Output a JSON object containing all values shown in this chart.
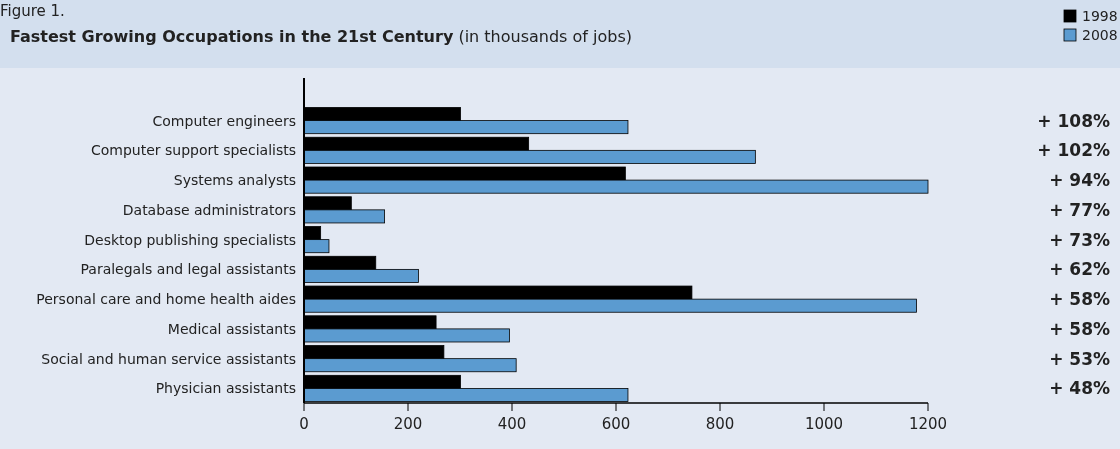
{
  "chart_data": {
    "type": "bar",
    "orientation": "horizontal",
    "title": "Fastest Growing Occupations in the 21st Century",
    "subtitle": "(in thousands of jobs)",
    "categories": [
      "Computer engineers",
      "Computer support specialists",
      "Systems analysts",
      "Database administrators",
      "Desktop publishing specialists",
      "Paralegals and legal assistants",
      "Personal care and home health aides",
      "Medical assistants",
      "Social and human service assistants",
      "Physician assistants"
    ],
    "series": [
      {
        "name": "1998",
        "color": "#000000",
        "values": [
          301,
          432,
          618,
          91,
          32,
          138,
          746,
          254,
          269,
          301
        ]
      },
      {
        "name": "2008",
        "color": "#5b9bd0",
        "values": [
          623,
          868,
          1200,
          155,
          48,
          220,
          1178,
          395,
          408,
          623
        ]
      }
    ],
    "xlim": [
      0,
      1200
    ],
    "xticks": [
      0,
      200,
      400,
      600,
      800,
      1000,
      1200
    ],
    "grid": false,
    "legend": "top right",
    "annotations": [
      "Figure 1.",
      "+ 108%",
      "+ 102%",
      "+ 94%",
      "+ 77%",
      "+ 73%",
      "+ 62%",
      "+ 58%",
      "+ 58%",
      "+ 53%",
      "+ 48%"
    ]
  }
}
